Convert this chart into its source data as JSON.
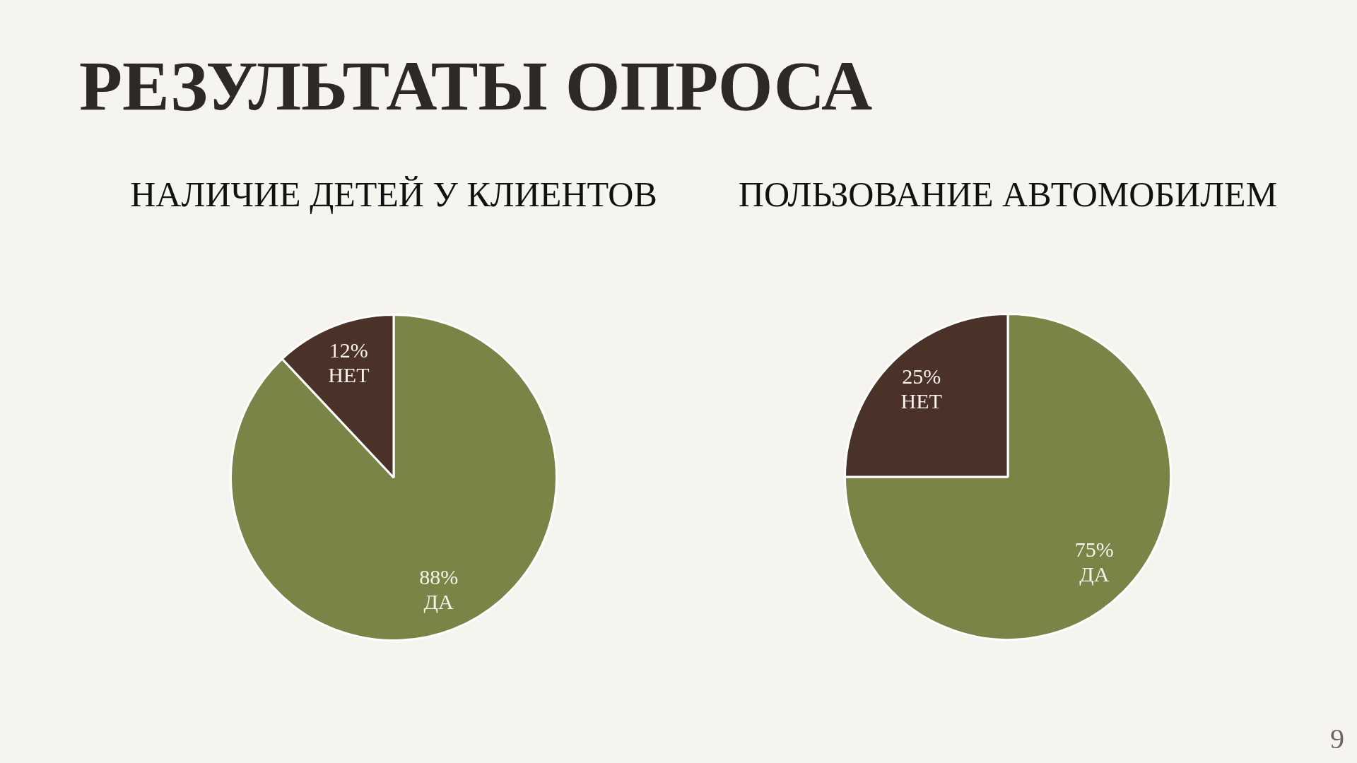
{
  "chart_data": [
    {
      "type": "other",
      "title": "РЕЗУЛЬТАТЫ ОПРОСА",
      "annotations": [
        "9"
      ]
    },
    {
      "type": "pie",
      "title": "НАЛИЧИЕ ДЕТЕЙ У КЛИЕНТОВ",
      "categories": [
        "ДА",
        "НЕТ"
      ],
      "values": [
        88,
        12
      ],
      "colors": [
        "#798446",
        "#4a3228"
      ],
      "value_labels": [
        "88%",
        "12%"
      ]
    },
    {
      "type": "pie",
      "title": "ПОЛЬЗОВАНИЕ АВТОМОБИЛЕМ",
      "categories": [
        "ДА",
        "НЕТ"
      ],
      "values": [
        75,
        25
      ],
      "colors": [
        "#798446",
        "#4a3228"
      ],
      "value_labels": [
        "75%",
        "25%"
      ]
    }
  ]
}
